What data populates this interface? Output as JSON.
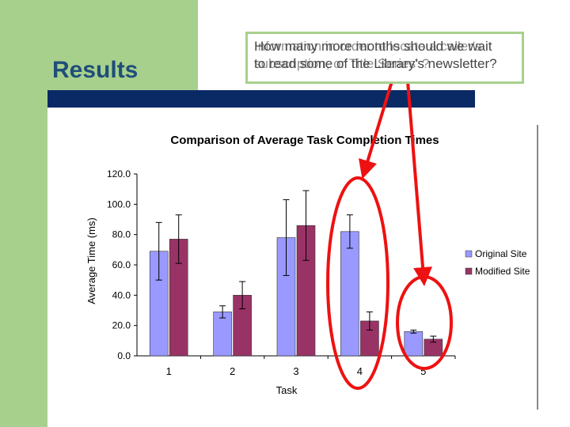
{
  "slide": {
    "title": "Results",
    "callout_lines_a": [
      "How many more months should we wait",
      "to read some of the Library's newsletter?"
    ],
    "callout_lines_b": [
      "Information in order to locate a caller's",
      "subscription, or Title Series' ?"
    ]
  },
  "colors": {
    "original": "#9999ff",
    "modified": "#993366",
    "arrow": "#ee1111",
    "accent_green": "#a8d08d",
    "title_blue": "#1f4e79"
  },
  "chart_data": {
    "type": "bar",
    "title": "Comparison of Average Task Completion Times",
    "xlabel": "Task",
    "ylabel": "Average Time (ms)",
    "categories": [
      "1",
      "2",
      "3",
      "4",
      "5"
    ],
    "ylim": [
      0,
      120
    ],
    "yticks": [
      "0.0",
      "20.0",
      "40.0",
      "60.0",
      "80.0",
      "100.0",
      "120.0"
    ],
    "legend_position": "right",
    "grid": false,
    "series": [
      {
        "name": "Original Site",
        "values": [
          69,
          29,
          78,
          82,
          16
        ],
        "error": [
          19,
          4,
          25,
          11,
          1
        ]
      },
      {
        "name": "Modified Site",
        "values": [
          77,
          40,
          86,
          23,
          11
        ],
        "error": [
          16,
          9,
          23,
          6,
          2
        ]
      }
    ],
    "highlights": [
      "4",
      "5"
    ]
  }
}
